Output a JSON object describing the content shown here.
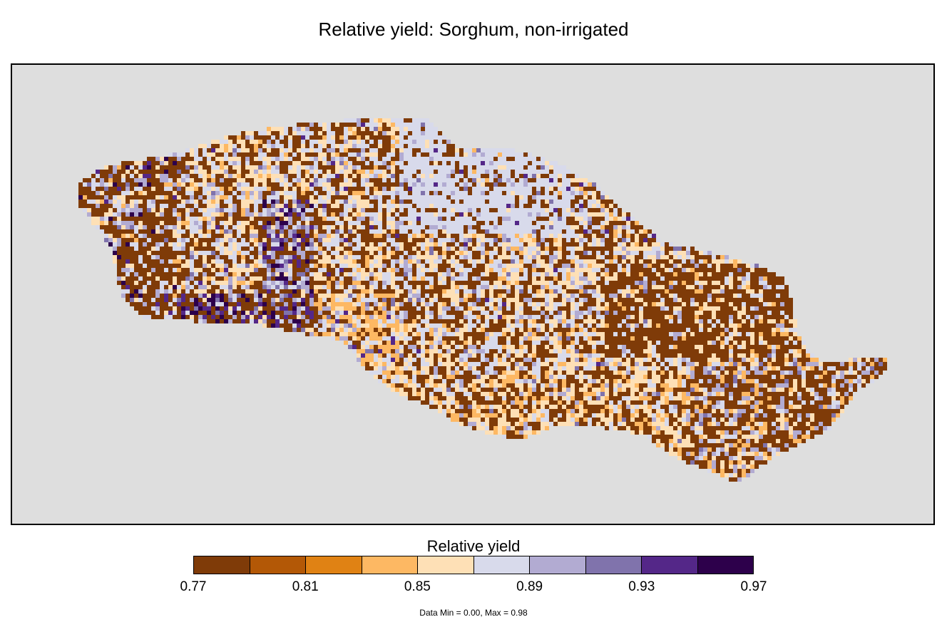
{
  "map": {
    "title": "Relative yield: Sorghum, non-irrigated",
    "background_color": "#dedede"
  },
  "legend": {
    "title": "Relative yield",
    "colors": [
      "#7f3b08",
      "#b35806",
      "#e08214",
      "#fdb863",
      "#fee0b6",
      "#d8daeb",
      "#b2abd2",
      "#8073ac",
      "#542788",
      "#2d004b"
    ],
    "tick_labels": [
      "0.77",
      "0.81",
      "0.85",
      "0.89",
      "0.93",
      "0.97"
    ]
  },
  "footer": {
    "data_range": "Data Min = 0.00, Max = 0.98"
  }
}
